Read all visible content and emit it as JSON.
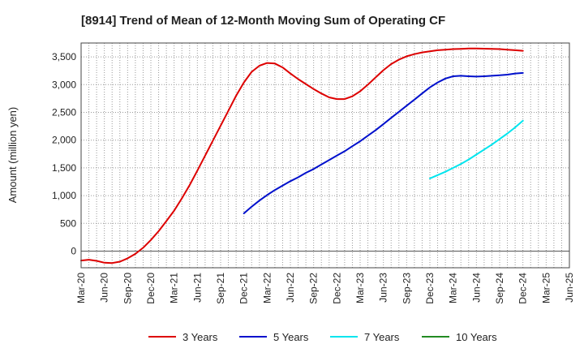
{
  "chart_data": {
    "type": "line",
    "title": "[8914]  Trend of Mean of 12-Month Moving Sum of Operating CF",
    "xlabel": "",
    "ylabel": "Amount (million yen)",
    "ylim": [
      -300,
      3750
    ],
    "y_ticks": [
      0,
      500,
      1000,
      1500,
      2000,
      2500,
      3000,
      3500
    ],
    "y_tick_labels": [
      "0",
      "500",
      "1,000",
      "1,500",
      "2,000",
      "2,500",
      "3,000",
      "3,500"
    ],
    "x_tick_labels": [
      "Mar-20",
      "Jun-20",
      "Sep-20",
      "Dec-20",
      "Mar-21",
      "Jun-21",
      "Sep-21",
      "Dec-21",
      "Mar-22",
      "Jun-22",
      "Sep-22",
      "Dec-22",
      "Mar-23",
      "Jun-23",
      "Sep-23",
      "Dec-23",
      "Mar-24",
      "Jun-24",
      "Sep-24",
      "Dec-24",
      "Mar-25",
      "Jun-25"
    ],
    "x_range_months": [
      0,
      63
    ],
    "grid": true,
    "legend_position": "bottom",
    "series": [
      {
        "name": "3 Years",
        "color": "#dd0000",
        "months": [
          0,
          1,
          2,
          3,
          4,
          5,
          6,
          7,
          8,
          9,
          10,
          11,
          12,
          13,
          14,
          15,
          16,
          17,
          18,
          19,
          20,
          21,
          22,
          23,
          24,
          25,
          26,
          27,
          28,
          29,
          30,
          31,
          32,
          33,
          34,
          35,
          36,
          37,
          38,
          39,
          40,
          41,
          42,
          43,
          44,
          45,
          46,
          47,
          48,
          49,
          50,
          51,
          52,
          53,
          54,
          55,
          56,
          57
        ],
        "values": [
          -170,
          -155,
          -175,
          -210,
          -215,
          -190,
          -130,
          -50,
          60,
          200,
          360,
          540,
          730,
          950,
          1190,
          1450,
          1720,
          1990,
          2260,
          2530,
          2800,
          3040,
          3230,
          3340,
          3390,
          3380,
          3310,
          3200,
          3100,
          3010,
          2920,
          2840,
          2770,
          2740,
          2740,
          2790,
          2880,
          3000,
          3130,
          3260,
          3370,
          3450,
          3510,
          3550,
          3580,
          3600,
          3620,
          3630,
          3640,
          3645,
          3650,
          3650,
          3648,
          3645,
          3640,
          3630,
          3620,
          3610
        ]
      },
      {
        "name": "5 Years",
        "color": "#0010cc",
        "months": [
          21,
          22,
          23,
          24,
          25,
          26,
          27,
          28,
          29,
          30,
          31,
          32,
          33,
          34,
          35,
          36,
          37,
          38,
          39,
          40,
          41,
          42,
          43,
          44,
          45,
          46,
          47,
          48,
          49,
          50,
          51,
          52,
          53,
          54,
          55,
          56,
          57
        ],
        "values": [
          680,
          800,
          910,
          1010,
          1100,
          1180,
          1260,
          1330,
          1410,
          1480,
          1560,
          1640,
          1720,
          1800,
          1890,
          1980,
          2080,
          2180,
          2290,
          2400,
          2510,
          2620,
          2730,
          2840,
          2950,
          3040,
          3110,
          3150,
          3160,
          3150,
          3145,
          3150,
          3160,
          3170,
          3180,
          3200,
          3210
        ]
      },
      {
        "name": "7 Years",
        "color": "#00e5ee",
        "months": [
          45,
          46,
          47,
          48,
          49,
          50,
          51,
          52,
          53,
          54,
          55,
          56,
          57
        ],
        "values": [
          1310,
          1370,
          1430,
          1500,
          1570,
          1650,
          1740,
          1830,
          1920,
          2020,
          2120,
          2230,
          2350
        ]
      },
      {
        "name": "10 Years",
        "color": "#228b22",
        "months": [],
        "values": []
      }
    ]
  }
}
